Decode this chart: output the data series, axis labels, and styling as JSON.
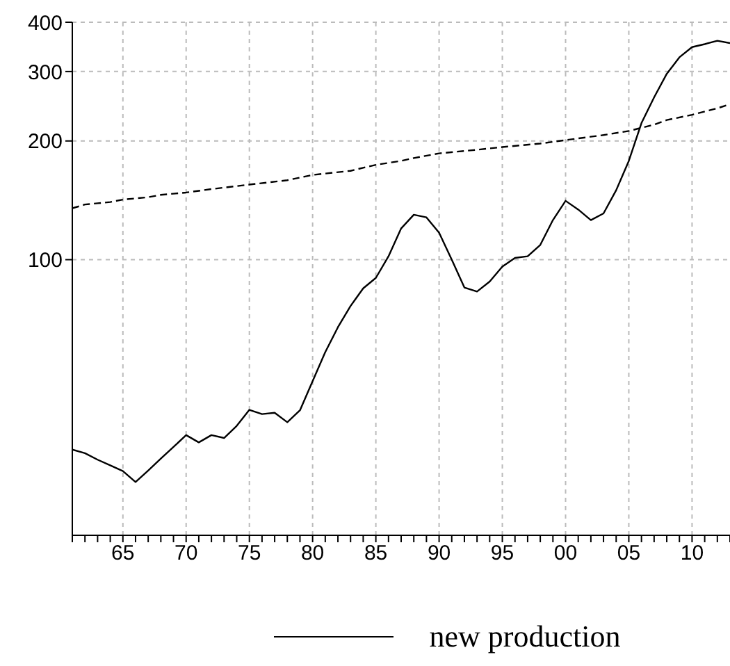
{
  "chart_data": {
    "type": "line",
    "log": "y",
    "grid": true,
    "legend": "bottom",
    "xlim": [
      1961,
      2013
    ],
    "ylim": [
      20,
      400
    ],
    "yticks": [
      100,
      200,
      300,
      400
    ],
    "xticks": [
      {
        "value": 1961,
        "label": null
      },
      {
        "value": 1962,
        "label": null
      },
      {
        "value": 1963,
        "label": null
      },
      {
        "value": 1964,
        "label": null
      },
      {
        "value": 1965,
        "label": "65"
      },
      {
        "value": 1966,
        "label": null
      },
      {
        "value": 1967,
        "label": null
      },
      {
        "value": 1968,
        "label": null
      },
      {
        "value": 1969,
        "label": null
      },
      {
        "value": 1970,
        "label": "70"
      },
      {
        "value": 1971,
        "label": null
      },
      {
        "value": 1972,
        "label": null
      },
      {
        "value": 1973,
        "label": null
      },
      {
        "value": 1974,
        "label": null
      },
      {
        "value": 1975,
        "label": "75"
      },
      {
        "value": 1976,
        "label": null
      },
      {
        "value": 1977,
        "label": null
      },
      {
        "value": 1978,
        "label": null
      },
      {
        "value": 1979,
        "label": null
      },
      {
        "value": 1980,
        "label": "80"
      },
      {
        "value": 1981,
        "label": null
      },
      {
        "value": 1982,
        "label": null
      },
      {
        "value": 1983,
        "label": null
      },
      {
        "value": 1984,
        "label": null
      },
      {
        "value": 1985,
        "label": "85"
      },
      {
        "value": 1986,
        "label": null
      },
      {
        "value": 1987,
        "label": null
      },
      {
        "value": 1988,
        "label": null
      },
      {
        "value": 1989,
        "label": null
      },
      {
        "value": 1990,
        "label": "90"
      },
      {
        "value": 1991,
        "label": null
      },
      {
        "value": 1992,
        "label": null
      },
      {
        "value": 1993,
        "label": null
      },
      {
        "value": 1994,
        "label": null
      },
      {
        "value": 1995,
        "label": "95"
      },
      {
        "value": 1996,
        "label": null
      },
      {
        "value": 1997,
        "label": null
      },
      {
        "value": 1998,
        "label": null
      },
      {
        "value": 1999,
        "label": null
      },
      {
        "value": 2000,
        "label": "00"
      },
      {
        "value": 2001,
        "label": null
      },
      {
        "value": 2002,
        "label": null
      },
      {
        "value": 2003,
        "label": null
      },
      {
        "value": 2004,
        "label": null
      },
      {
        "value": 2005,
        "label": "05"
      },
      {
        "value": 2006,
        "label": null
      },
      {
        "value": 2007,
        "label": null
      },
      {
        "value": 2008,
        "label": null
      },
      {
        "value": 2009,
        "label": null
      },
      {
        "value": 2010,
        "label": "10"
      },
      {
        "value": 2011,
        "label": null
      },
      {
        "value": 2012,
        "label": null
      },
      {
        "value": 2013,
        "label": null
      }
    ],
    "series": [
      {
        "name": "new production",
        "color": "#000000",
        "line_style": "solid",
        "x": [
          1961,
          1962,
          1963,
          1964,
          1965,
          1966,
          1967,
          1968,
          1969,
          1970,
          1971,
          1972,
          1973,
          1974,
          1975,
          1976,
          1977,
          1978,
          1979,
          1980,
          1981,
          1982,
          1983,
          1984,
          1985,
          1986,
          1987,
          1988,
          1989,
          1990,
          1991,
          1992,
          1993,
          1994,
          1995,
          1996,
          1997,
          1998,
          1999,
          2000,
          2001,
          2002,
          2003,
          2004,
          2005,
          2006,
          2007,
          2008,
          2009,
          2010,
          2011,
          2012,
          2013
        ],
        "values": [
          33,
          32.3,
          31.1,
          30.1,
          29.1,
          27.3,
          29.2,
          31.3,
          33.5,
          35.9,
          34.4,
          35.9,
          35.3,
          37.9,
          41.6,
          40.6,
          40.9,
          38.7,
          41.5,
          49.2,
          58.3,
          67.4,
          76.3,
          84.6,
          89.9,
          102,
          120,
          130,
          128,
          117,
          100,
          85,
          83,
          88,
          96,
          101,
          102,
          109,
          126,
          141,
          134,
          126,
          131,
          150,
          178,
          222,
          258,
          296,
          326,
          346,
          352,
          359,
          354
        ]
      },
      {
        "color": "#000000",
        "line_style": "dashed",
        "x": [
          1961,
          1962,
          1963,
          1964,
          1965,
          1966,
          1967,
          1968,
          1969,
          1970,
          1972,
          1975,
          1978,
          1980,
          1983,
          1985,
          1987,
          1988,
          1990,
          1993,
          1995,
          1998,
          2000,
          2002,
          2003,
          2005,
          2007,
          2008,
          2010,
          2012,
          2013
        ],
        "values": [
          135,
          138,
          139,
          140,
          142,
          143,
          144,
          146,
          147,
          148,
          151,
          155,
          159,
          164,
          168,
          174,
          178,
          181,
          186,
          190,
          193,
          197,
          201,
          205,
          207,
          212,
          220,
          226,
          233,
          242,
          248
        ]
      }
    ]
  }
}
